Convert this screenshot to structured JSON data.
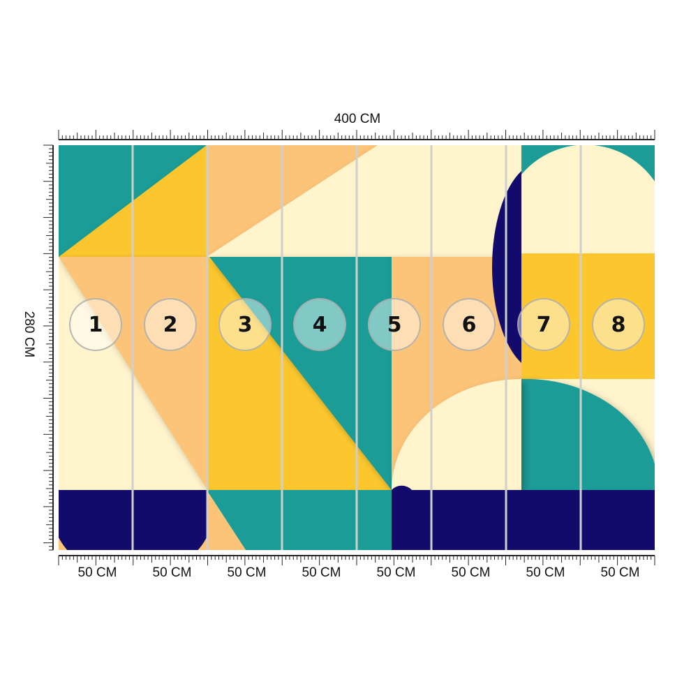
{
  "dimensions": {
    "width_label": "400 CM",
    "height_label": "280 CM"
  },
  "panels": [
    {
      "number": "1",
      "width_label": "50 CM"
    },
    {
      "number": "2",
      "width_label": "50 CM"
    },
    {
      "number": "3",
      "width_label": "50 CM"
    },
    {
      "number": "4",
      "width_label": "50 CM"
    },
    {
      "number": "5",
      "width_label": "50 CM"
    },
    {
      "number": "6",
      "width_label": "50 CM"
    },
    {
      "number": "7",
      "width_label": "50 CM"
    },
    {
      "number": "8",
      "width_label": "50 CM"
    }
  ],
  "colors": {
    "teal": "#1b9c96",
    "yellow": "#fcc72e",
    "peach": "#fcc478",
    "cream": "#fff4cc",
    "navy": "#120b6b"
  }
}
